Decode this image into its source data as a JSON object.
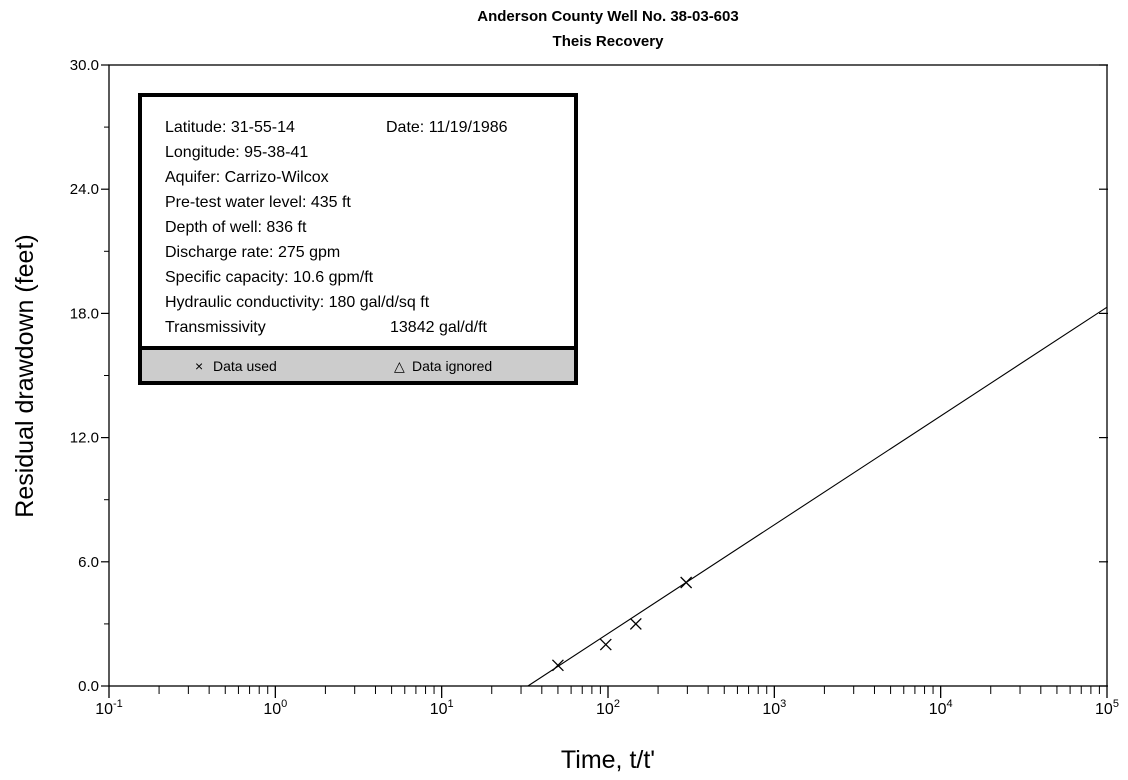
{
  "chart_data": {
    "type": "scatter",
    "title": "Anderson County Well No. 38-03-603",
    "subtitle": "Theis Recovery",
    "xlabel": "Time, t/t'",
    "ylabel": "Residual drawdown (feet)",
    "x_scale": "log",
    "xlim": [
      0.1,
      100000
    ],
    "ylim": [
      0.0,
      30.0
    ],
    "x_tick_labels": [
      {
        "base": "10",
        "exp": "-1"
      },
      {
        "base": "10",
        "exp": "0"
      },
      {
        "base": "10",
        "exp": "1"
      },
      {
        "base": "10",
        "exp": "2"
      },
      {
        "base": "10",
        "exp": "3"
      },
      {
        "base": "10",
        "exp": "4"
      },
      {
        "base": "10",
        "exp": "5"
      }
    ],
    "y_tick_labels": [
      "0.0",
      "6.0",
      "12.0",
      "18.0",
      "24.0",
      "30.0"
    ],
    "y_major_ticks": [
      0,
      6,
      12,
      18,
      24,
      30
    ],
    "y_minor_ticks": [
      3,
      9,
      15,
      21,
      27
    ],
    "grid": false,
    "series": [
      {
        "name": "Data used",
        "marker": "x",
        "points": [
          {
            "x": 50,
            "y": 1.0
          },
          {
            "x": 97,
            "y": 2.0
          },
          {
            "x": 147,
            "y": 3.0
          },
          {
            "x": 295,
            "y": 5.0
          }
        ]
      },
      {
        "name": "Data ignored",
        "marker": "triangle",
        "points": []
      }
    ],
    "fit_line": {
      "points": [
        {
          "x": 33,
          "y": 0.0
        },
        {
          "x": 100000,
          "y": 18.3
        }
      ]
    },
    "info_box": {
      "lines": [
        "Latitude:  31-55-14",
        "Longitude:  95-38-41",
        "Aquifer:  Carrizo-Wilcox",
        "Pre-test water level:  435 ft",
        "Depth of well:  836 ft",
        "Discharge rate:  275 gpm",
        "Specific capacity:  10.6 gpm/ft",
        "Hydraulic conductivity:  180 gal/d/sq ft",
        "Transmissivity"
      ],
      "date": "Date:  11/19/1986",
      "transmissivity_value": "13842  gal/d/ft"
    },
    "legend": {
      "used_label": "Data used",
      "ignored_label": "Data ignored",
      "used_symbol": "×",
      "ignored_symbol": "△"
    }
  }
}
